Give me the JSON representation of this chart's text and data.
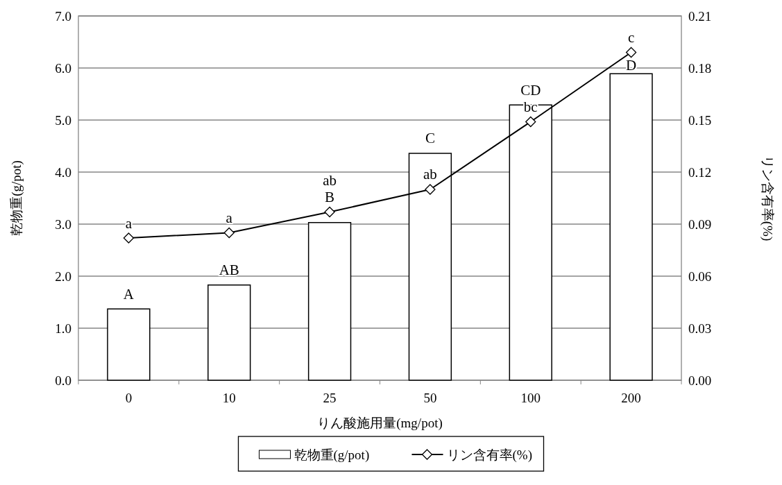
{
  "chart_data": {
    "type": "bar",
    "xlabel": "りん酸施用量(mg/pot)",
    "ylabel": "乾物重(g/pot)",
    "y2label": "リン含有率(%)",
    "categories": [
      "0",
      "10",
      "25",
      "50",
      "100",
      "200"
    ],
    "series": [
      {
        "name": "乾物重(g/pot)",
        "color": "#ffffff",
        "values": [
          1.37,
          1.83,
          3.03,
          4.36,
          5.29,
          5.89
        ]
      },
      {
        "name": "リン含有率(%)",
        "type": "line",
        "axis": "y2",
        "color": "#000000",
        "marker": "diamond",
        "values": [
          0.082,
          0.085,
          0.097,
          0.11,
          0.149,
          0.189
        ]
      }
    ],
    "ylim": [
      0,
      7
    ],
    "yticks": [
      {
        "value": 0,
        "label": "0.0"
      },
      {
        "value": 1,
        "label": "1.0"
      },
      {
        "value": 2,
        "label": "2.0"
      },
      {
        "value": 3,
        "label": "3.0"
      },
      {
        "value": 4,
        "label": "4.0"
      },
      {
        "value": 5,
        "label": "5.0"
      },
      {
        "value": 6,
        "label": "6.0"
      },
      {
        "value": 7,
        "label": "7.0"
      }
    ],
    "y2lim": [
      0,
      0.21
    ],
    "y2ticks": [
      {
        "value": 0,
        "label": "0.00"
      },
      {
        "value": 0.03,
        "label": "0.03"
      },
      {
        "value": 0.06,
        "label": "0.06"
      },
      {
        "value": 0.09,
        "label": "0.09"
      },
      {
        "value": 0.12,
        "label": "0.12"
      },
      {
        "value": 0.15,
        "label": "0.15"
      },
      {
        "value": 0.18,
        "label": "0.18"
      },
      {
        "value": 0.21,
        "label": "0.21"
      }
    ],
    "grid": "y",
    "legend": "bottom",
    "annotations": [
      {
        "text": "A",
        "x": "0",
        "y": 1.37
      },
      {
        "text": "a",
        "x": "0",
        "y": 2.73
      },
      {
        "text": "AB",
        "x": "10",
        "y": 1.83
      },
      {
        "text": "a",
        "x": "10",
        "y": 2.83
      },
      {
        "text": "B",
        "x": "25",
        "y": 3.03
      },
      {
        "text": "ab",
        "x": "25",
        "y": 3.23
      },
      {
        "text": "C",
        "x": "50",
        "y": 4.36
      },
      {
        "text": "ab",
        "x": "50",
        "y": 3.67
      },
      {
        "text": "CD",
        "x": "100",
        "y": 5.29
      },
      {
        "text": "bc",
        "x": "100",
        "y": 4.97
      },
      {
        "text": "D",
        "x": "200",
        "y": 5.89
      },
      {
        "text": "c",
        "x": "200",
        "y": 6.3
      }
    ]
  }
}
